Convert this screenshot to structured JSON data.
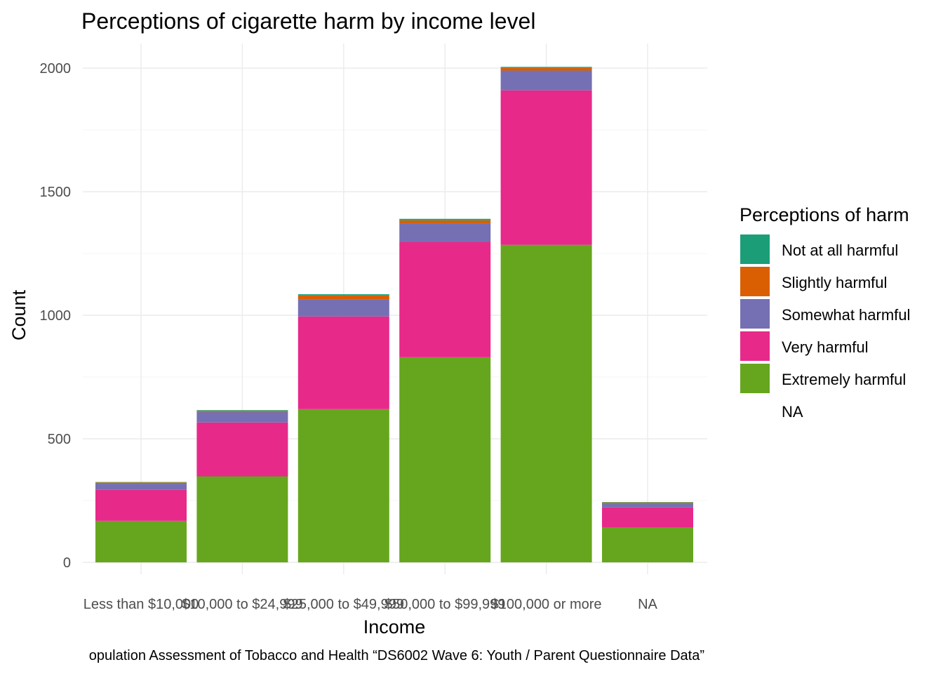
{
  "chart_data": {
    "type": "bar",
    "stacked": true,
    "title": "Perceptions of cigarette harm by income level",
    "xlabel": "Income",
    "ylabel": "Count",
    "caption": "opulation Assessment of Tobacco and Health “DS6002 Wave 6: Youth / Parent Questionnaire Data”",
    "categories": [
      "Less than $10,000",
      "$10,000 to $24,999",
      "$25,000 to $49,999",
      "$50,000 to $99,999",
      "$100,000 or more",
      "NA"
    ],
    "ylim": [
      0,
      2000
    ],
    "yticks": [
      0,
      500,
      1000,
      1500,
      2000
    ],
    "grid": true,
    "legend": {
      "title": "Perceptions of harm",
      "position": "right",
      "entries": [
        "Not at all harmful",
        "Slightly harmful",
        "Somewhat harmful",
        "Very harmful",
        "Extremely harmful",
        "NA"
      ]
    },
    "series": [
      {
        "name": "Extremely harmful",
        "color": "#66a61e",
        "values": [
          168,
          348,
          620,
          830,
          1285,
          142
        ]
      },
      {
        "name": "Very harmful",
        "color": "#e7298a",
        "values": [
          125,
          218,
          375,
          467,
          625,
          80
        ]
      },
      {
        "name": "Somewhat harmful",
        "color": "#7570b3",
        "values": [
          25,
          42,
          70,
          75,
          80,
          15
        ]
      },
      {
        "name": "Slightly harmful",
        "color": "#d95f02",
        "values": [
          5,
          5,
          15,
          12,
          12,
          5
        ]
      },
      {
        "name": "Not at all harmful",
        "color": "#1b9e77",
        "values": [
          2,
          3,
          5,
          6,
          3,
          2
        ]
      },
      {
        "name": "NA",
        "color": "#ffffff",
        "values": [
          0,
          0,
          0,
          0,
          0,
          0
        ]
      }
    ]
  }
}
